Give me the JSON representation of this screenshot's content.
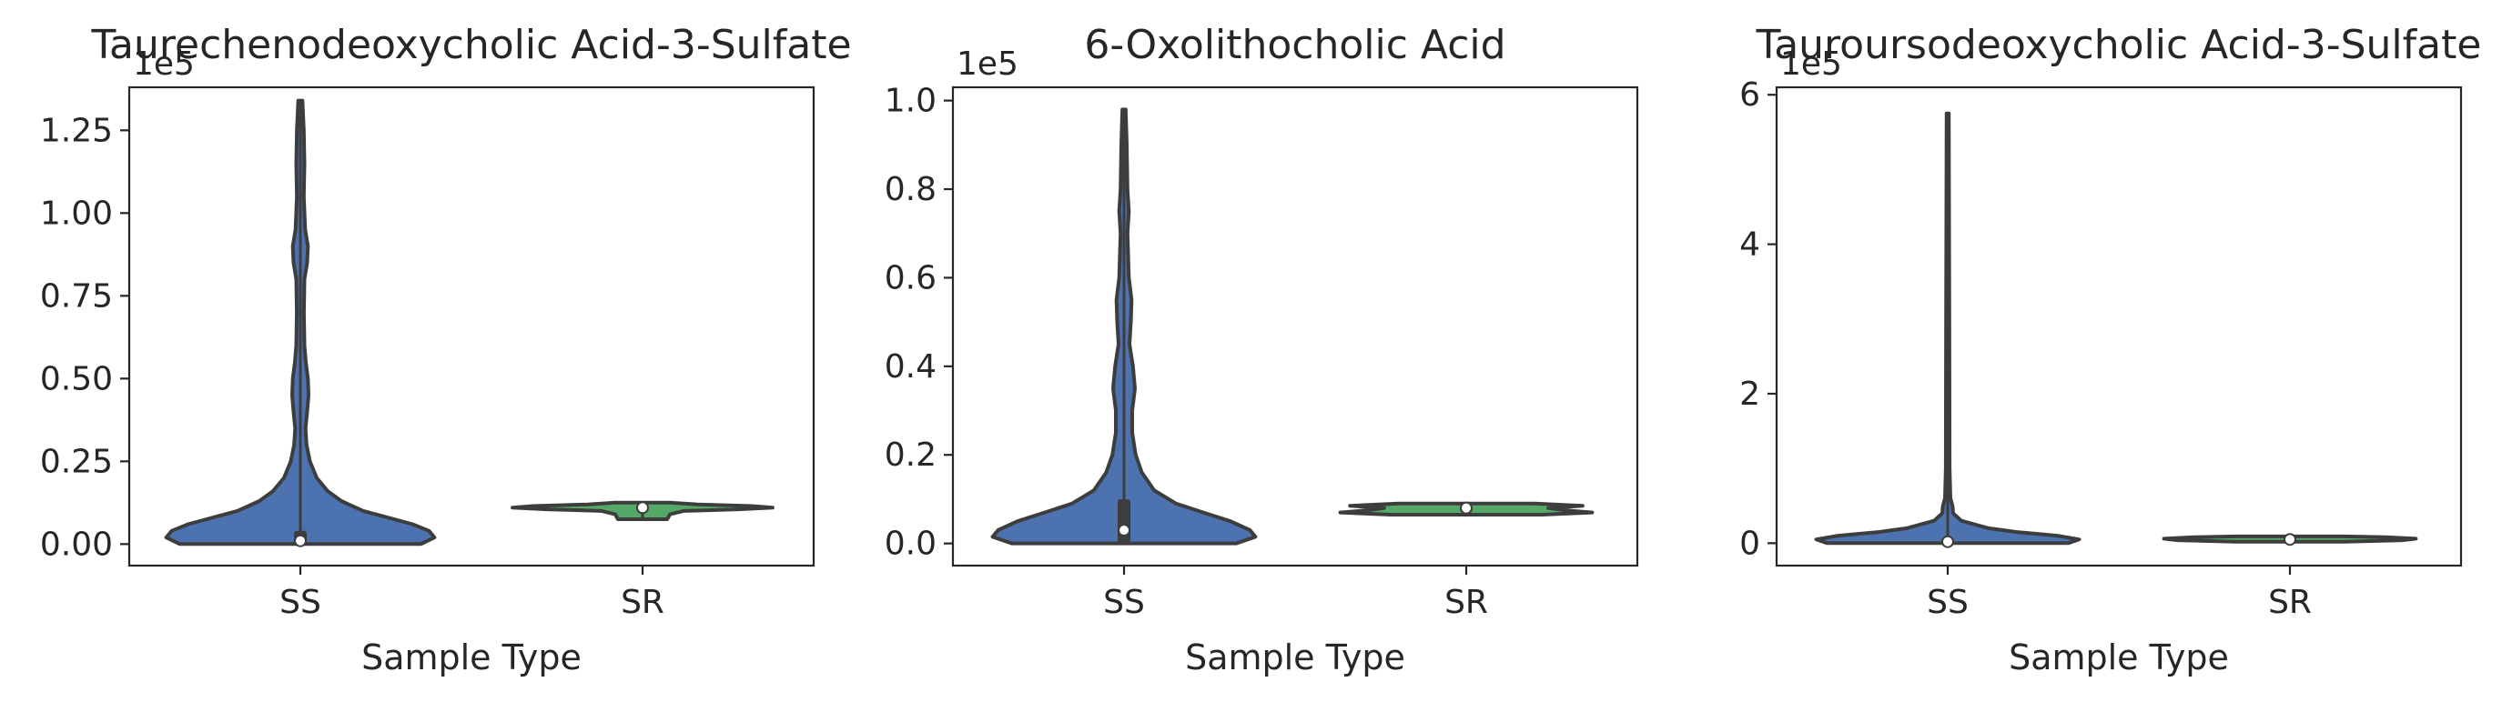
{
  "chart_data": [
    {
      "type": "violin",
      "title": "Taurechenodeoxycholic Acid-3-Sulfate",
      "xlabel": "Sample Type",
      "ylabel": "",
      "y_offset_label": "1e5",
      "categories": [
        "SS",
        "SR"
      ],
      "ylim": [
        -0.065,
        1.38
      ],
      "yticks": [
        0.0,
        0.25,
        0.5,
        0.75,
        1.0,
        1.25
      ],
      "ytick_labels": [
        "0.00",
        "0.25",
        "0.50",
        "0.75",
        "1.00",
        "1.25"
      ],
      "series": [
        {
          "category": "SS",
          "color": "#4c72b0",
          "min": 0.0,
          "q1": 0.0,
          "median": 0.01,
          "q3": 0.04,
          "max": 1.34,
          "profile": [
            [
              0.0,
              0.88
            ],
            [
              0.02,
              0.98
            ],
            [
              0.04,
              0.94
            ],
            [
              0.06,
              0.82
            ],
            [
              0.08,
              0.64
            ],
            [
              0.1,
              0.46
            ],
            [
              0.13,
              0.3
            ],
            [
              0.16,
              0.2
            ],
            [
              0.2,
              0.12
            ],
            [
              0.25,
              0.07
            ],
            [
              0.3,
              0.045
            ],
            [
              0.35,
              0.038
            ],
            [
              0.4,
              0.05
            ],
            [
              0.45,
              0.06
            ],
            [
              0.5,
              0.055
            ],
            [
              0.55,
              0.04
            ],
            [
              0.6,
              0.03
            ],
            [
              0.7,
              0.026
            ],
            [
              0.8,
              0.03
            ],
            [
              0.85,
              0.05
            ],
            [
              0.9,
              0.055
            ],
            [
              0.95,
              0.035
            ],
            [
              1.05,
              0.025
            ],
            [
              1.15,
              0.03
            ],
            [
              1.25,
              0.025
            ],
            [
              1.34,
              0.015
            ]
          ]
        },
        {
          "category": "SR",
          "color": "#55a868",
          "min": 0.075,
          "q1": 0.105,
          "median": 0.11,
          "q3": 0.115,
          "max": 0.125,
          "profile": [
            [
              0.075,
              0.18
            ],
            [
              0.09,
              0.2
            ],
            [
              0.1,
              0.3
            ],
            [
              0.105,
              0.7
            ],
            [
              0.11,
              0.95
            ],
            [
              0.115,
              0.8
            ],
            [
              0.12,
              0.4
            ],
            [
              0.125,
              0.2
            ]
          ]
        }
      ]
    },
    {
      "type": "violin",
      "title": "6-Oxolithocholic Acid",
      "xlabel": "Sample Type",
      "ylabel": "",
      "y_offset_label": "1e5",
      "categories": [
        "SS",
        "SR"
      ],
      "ylim": [
        -0.05,
        1.03
      ],
      "yticks": [
        0.0,
        0.2,
        0.4,
        0.6,
        0.8,
        1.0
      ],
      "ytick_labels": [
        "0.0",
        "0.2",
        "0.4",
        "0.6",
        "0.8",
        "1.0"
      ],
      "series": [
        {
          "category": "SS",
          "color": "#4c72b0",
          "min": 0.0,
          "q1": 0.0,
          "median": 0.03,
          "q3": 0.1,
          "max": 0.98,
          "profile": [
            [
              0.0,
              0.82
            ],
            [
              0.015,
              0.96
            ],
            [
              0.03,
              0.92
            ],
            [
              0.05,
              0.78
            ],
            [
              0.07,
              0.58
            ],
            [
              0.09,
              0.38
            ],
            [
              0.12,
              0.22
            ],
            [
              0.16,
              0.13
            ],
            [
              0.2,
              0.085
            ],
            [
              0.25,
              0.06
            ],
            [
              0.3,
              0.06
            ],
            [
              0.35,
              0.08
            ],
            [
              0.4,
              0.065
            ],
            [
              0.45,
              0.04
            ],
            [
              0.5,
              0.05
            ],
            [
              0.55,
              0.055
            ],
            [
              0.6,
              0.035
            ],
            [
              0.7,
              0.025
            ],
            [
              0.75,
              0.035
            ],
            [
              0.8,
              0.025
            ],
            [
              0.9,
              0.02
            ],
            [
              0.98,
              0.012
            ]
          ]
        },
        {
          "category": "SR",
          "color": "#55a868",
          "min": 0.065,
          "q1": 0.07,
          "median": 0.08,
          "q3": 0.085,
          "max": 0.09,
          "profile": [
            [
              0.065,
              0.55
            ],
            [
              0.07,
              0.92
            ],
            [
              0.075,
              0.72
            ],
            [
              0.08,
              0.6
            ],
            [
              0.085,
              0.85
            ],
            [
              0.09,
              0.5
            ]
          ]
        }
      ]
    },
    {
      "type": "violin",
      "title": "Tauroursodeoxycholic Acid-3-Sulfate",
      "xlabel": "Sample Type",
      "ylabel": "",
      "y_offset_label": "1e5",
      "categories": [
        "SS",
        "SR"
      ],
      "ylim": [
        -0.3,
        6.1
      ],
      "yticks": [
        0,
        2,
        4,
        6
      ],
      "ytick_labels": [
        "0",
        "2",
        "4",
        "6"
      ],
      "series": [
        {
          "category": "SS",
          "color": "#4c72b0",
          "min": 0.0,
          "q1": 0.0,
          "median": 0.02,
          "q3": 0.06,
          "max": 5.75,
          "profile": [
            [
              0.0,
              0.88
            ],
            [
              0.05,
              0.96
            ],
            [
              0.1,
              0.8
            ],
            [
              0.15,
              0.5
            ],
            [
              0.2,
              0.3
            ],
            [
              0.3,
              0.1
            ],
            [
              0.4,
              0.04
            ],
            [
              0.5,
              0.035
            ],
            [
              0.6,
              0.02
            ],
            [
              1.0,
              0.014
            ],
            [
              3.0,
              0.012
            ],
            [
              5.75,
              0.008
            ]
          ]
        },
        {
          "category": "SR",
          "color": "#55a868",
          "min": 0.02,
          "q1": 0.03,
          "median": 0.05,
          "q3": 0.07,
          "max": 0.09,
          "profile": [
            [
              0.02,
              0.4
            ],
            [
              0.04,
              0.82
            ],
            [
              0.06,
              0.92
            ],
            [
              0.08,
              0.7
            ],
            [
              0.09,
              0.4
            ]
          ]
        }
      ]
    }
  ]
}
